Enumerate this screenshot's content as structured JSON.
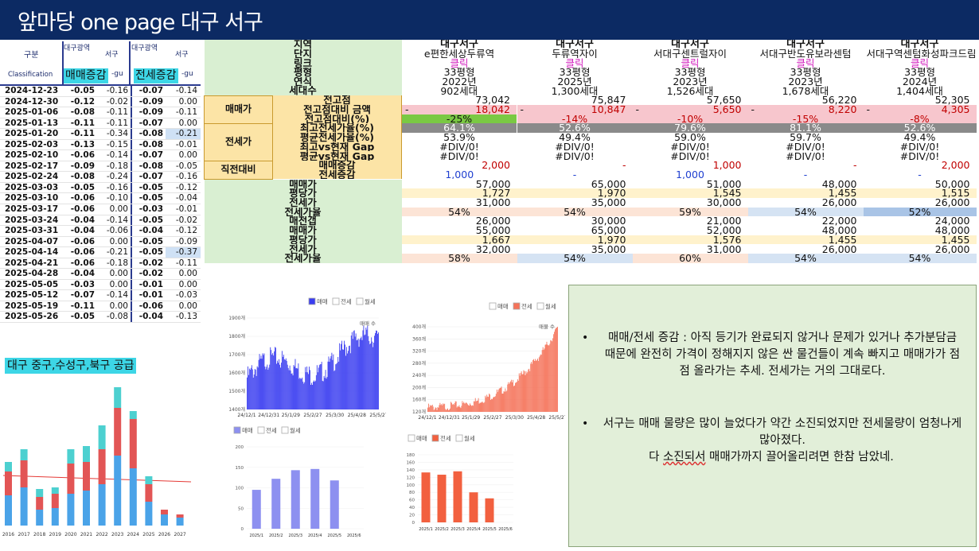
{
  "title": "앞마당 one page 대구 서구",
  "weekly": {
    "header": {
      "col_gubun": "구분",
      "col_classification": "Classification",
      "col_daegu1": "대구광역",
      "col_seogu1": "서구",
      "col_daegu2": "대구광역",
      "col_seogu2": "서구",
      "gu1": "-gu",
      "gu2": "-gu",
      "highlight_sale": "매매증감",
      "highlight_jeonse": "전세증감"
    },
    "rows": [
      {
        "date": "2024-12-23",
        "a": "-0.05",
        "b": "-0.16",
        "c": "-0.07",
        "d": "-0.14"
      },
      {
        "date": "2024-12-30",
        "a": "-0.12",
        "b": "-0.02",
        "c": "-0.09",
        "d": "0.00"
      },
      {
        "date": "2025-01-06",
        "a": "-0.08",
        "b": "-0.11",
        "c": "-0.09",
        "d": "-0.11"
      },
      {
        "date": "2025-01-13",
        "a": "-0.11",
        "b": "-0.11",
        "c": "-0.07",
        "d": "0.00"
      },
      {
        "date": "2025-01-20",
        "a": "-0.11",
        "b": "-0.34",
        "c": "-0.08",
        "d": "-0.21"
      },
      {
        "date": "2025-02-03",
        "a": "-0.13",
        "b": "-0.15",
        "c": "-0.08",
        "d": "-0.01"
      },
      {
        "date": "2025-02-10",
        "a": "-0.06",
        "b": "-0.14",
        "c": "-0.07",
        "d": "0.00"
      },
      {
        "date": "2025-02-17",
        "a": "-0.09",
        "b": "-0.18",
        "c": "-0.08",
        "d": "-0.05"
      },
      {
        "date": "2025-02-24",
        "a": "-0.08",
        "b": "-0.24",
        "c": "-0.07",
        "d": "-0.16"
      },
      {
        "date": "2025-03-03",
        "a": "-0.05",
        "b": "-0.16",
        "c": "-0.05",
        "d": "-0.12"
      },
      {
        "date": "2025-03-10",
        "a": "-0.06",
        "b": "-0.10",
        "c": "-0.05",
        "d": "-0.04"
      },
      {
        "date": "2025-03-17",
        "a": "-0.06",
        "b": "0.00",
        "c": "-0.03",
        "d": "-0.01"
      },
      {
        "date": "2025-03-24",
        "a": "-0.04",
        "b": "-0.14",
        "c": "-0.05",
        "d": "-0.02"
      },
      {
        "date": "2025-03-31",
        "a": "-0.04",
        "b": "-0.06",
        "c": "-0.04",
        "d": "-0.12"
      },
      {
        "date": "2025-04-07",
        "a": "-0.06",
        "b": "0.00",
        "c": "-0.05",
        "d": "-0.09"
      },
      {
        "date": "2025-04-14",
        "a": "-0.06",
        "b": "-0.21",
        "c": "-0.05",
        "d": "-0.37"
      },
      {
        "date": "2025-04-21",
        "a": "-0.06",
        "b": "-0.18",
        "c": "-0.02",
        "d": "-0.11"
      },
      {
        "date": "2025-04-28",
        "a": "-0.04",
        "b": "0.00",
        "c": "-0.02",
        "d": "0.00"
      },
      {
        "date": "2025-05-05",
        "a": "-0.03",
        "b": "0.00",
        "c": "-0.01",
        "d": "0.00"
      },
      {
        "date": "2025-05-12",
        "a": "-0.07",
        "b": "-0.14",
        "c": "-0.01",
        "d": "-0.03"
      },
      {
        "date": "2025-05-19",
        "a": "-0.11",
        "b": "0.00",
        "c": "-0.06",
        "d": "0.00"
      },
      {
        "date": "2025-05-26",
        "a": "-0.05",
        "b": "-0.08",
        "c": "-0.04",
        "d": "-0.13"
      }
    ]
  },
  "supply": {
    "label": "대구 중구,수성구,북구 공급",
    "years": [
      "2016",
      "2017",
      "2018",
      "2019",
      "2020",
      "2021",
      "2022",
      "2023",
      "2024",
      "2025",
      "2026",
      "2027"
    ]
  },
  "table": {
    "labels": {
      "region": "지역",
      "complex": "단지",
      "link": "링크",
      "size": "평형",
      "year": "연식",
      "households": "세대수",
      "sale": "매매가",
      "jeonse": "전세가",
      "recent": "직전대비",
      "peak": "전고점",
      "peak_diff_amt": "전고점대비 금액",
      "peak_diff_pct": "전고점대비(%)",
      "max_jeonse_rate": "최고전세가율(%)",
      "avg_jeonse_rate": "평균전세가율(%)",
      "max_vs_gap": "최고vs현재 Gap",
      "avg_vs_gap": "평균vs현재 Gap",
      "sale_change": "매매증감",
      "jeonse_change": "전세증감",
      "r_sale": "매매가",
      "r_ppy": "평당가",
      "r_jeonse": "전세가",
      "r_rate": "전세가율",
      "r_gap": "매전갭",
      "r_sale2": "매매가",
      "r_ppy2": "평당가",
      "r_jeonse2": "전세가",
      "r_rate2": "전세가율"
    },
    "columns": [
      {
        "region": "대구서구",
        "complex": "e편한세상두류역",
        "link": "클릭",
        "size": "33평형",
        "year": "2022년",
        "households": "902세대",
        "peak": "73,042",
        "diff_sign": "-",
        "diff_amt": "18,042",
        "diff_pct": "-25%",
        "max_rate": "64.1%",
        "avg_rate": "53.9%",
        "max_gap": "#DIV/0!",
        "avg_gap": "#DIV/0!",
        "sale_change": "2,000",
        "jeonse_change": "1,000",
        "sale": "57,000",
        "ppy": "1,727",
        "jeonse": "31,000",
        "rate": "54%",
        "gap": "26,000",
        "sale2": "55,000",
        "ppy2": "1,667",
        "jeonse2": "32,000",
        "rate2": "58%"
      },
      {
        "region": "대구서구",
        "complex": "두류역자이",
        "link": "클릭",
        "size": "33평형",
        "year": "2025년",
        "households": "1,300세대",
        "peak": "75,847",
        "diff_sign": "-",
        "diff_amt": "10,847",
        "diff_pct": "-14%",
        "max_rate": "52.6%",
        "avg_rate": "49.4%",
        "max_gap": "#DIV/0!",
        "avg_gap": "#DIV/0!",
        "sale_change": "-",
        "jeonse_change": "-",
        "sale": "65,000",
        "ppy": "1,970",
        "jeonse": "35,000",
        "rate": "54%",
        "gap": "30,000",
        "sale2": "65,000",
        "ppy2": "1,970",
        "jeonse2": "35,000",
        "rate2": "54%"
      },
      {
        "region": "대구서구",
        "complex": "서대구센트럴자이",
        "link": "클릭",
        "size": "33평형",
        "year": "2023년",
        "households": "1,526세대",
        "peak": "57,650",
        "diff_sign": "-",
        "diff_amt": "5,650",
        "diff_pct": "-10%",
        "max_rate": "79.6%",
        "avg_rate": "59.0%",
        "max_gap": "#DIV/0!",
        "avg_gap": "#DIV/0!",
        "sale_change": "1,000",
        "jeonse_change": "1,000",
        "sale": "51,000",
        "ppy": "1,545",
        "jeonse": "30,000",
        "rate": "59%",
        "gap": "21,000",
        "sale2": "52,000",
        "ppy2": "1,576",
        "jeonse2": "31,000",
        "rate2": "60%"
      },
      {
        "region": "대구서구",
        "complex": "서대구반도유보라센텀",
        "link": "클릭",
        "size": "33평형",
        "year": "2023년",
        "households": "1,678세대",
        "peak": "56,220",
        "diff_sign": "-",
        "diff_amt": "8,220",
        "diff_pct": "-15%",
        "max_rate": "81.1%",
        "avg_rate": "59.7%",
        "max_gap": "#DIV/0!",
        "avg_gap": "#DIV/0!",
        "sale_change": "-",
        "jeonse_change": "-",
        "sale": "48,000",
        "ppy": "1,455",
        "jeonse": "26,000",
        "rate": "54%",
        "gap": "22,000",
        "sale2": "48,000",
        "ppy2": "1,455",
        "jeonse2": "26,000",
        "rate2": "54%"
      },
      {
        "region": "대구서구",
        "complex": "서대구역센텀화성파크드림",
        "link": "클릭",
        "size": "33평형",
        "year": "2024년",
        "households": "1,404세대",
        "peak": "52,305",
        "diff_sign": "-",
        "diff_amt": "4,305",
        "diff_pct": "-8%",
        "max_rate": "52.6%",
        "avg_rate": "49.4%",
        "max_gap": "#DIV/0!",
        "avg_gap": "#DIV/0!",
        "sale_change": "2,000",
        "jeonse_change": "-",
        "sale": "50,000",
        "ppy": "1,515",
        "jeonse": "26,000",
        "rate": "52%",
        "gap": "24,000",
        "sale2": "48,000",
        "ppy2": "1,455",
        "jeonse2": "26,000",
        "rate2": "54%"
      }
    ]
  },
  "charts": {
    "legend_sale": "매매",
    "legend_jeonse": "전세",
    "legend_monthly": "월세",
    "chart1": {
      "type": "bar",
      "y_ticks": [
        "1900개",
        "1800개",
        "1700개",
        "1600개",
        "1500개",
        "1400개"
      ],
      "x_ticks": [
        "24/12/1",
        "24/12/31",
        "25/1/29",
        "25/2/27",
        "25/3/30",
        "25/4/28",
        "25/5/27"
      ],
      "annotation": "매매 수",
      "color": "#3a3df0"
    },
    "chart2": {
      "type": "bar",
      "y_ticks": [
        "400개",
        "360개",
        "320개",
        "280개",
        "240개",
        "200개",
        "160개",
        "120개"
      ],
      "x_ticks": [
        "24/12/1",
        "24/12/31",
        "25/1/29",
        "25/2/27",
        "25/3/30",
        "25/4/28",
        "25/5/27"
      ],
      "annotation": "매물 수",
      "color": "#f5735a"
    },
    "chart3": {
      "type": "bar",
      "y_ticks": [
        "200",
        "150",
        "100",
        "50",
        "0"
      ],
      "categories": [
        "2025/1",
        "2025/2",
        "2025/3",
        "2025/4",
        "2025/5",
        "2025/6"
      ],
      "values": [
        95,
        122,
        143,
        146,
        118,
        0
      ],
      "color": "#8d90f0"
    },
    "chart4": {
      "type": "bar",
      "y_ticks": [
        "180",
        "160",
        "140",
        "120",
        "100",
        "80",
        "60",
        "40",
        "20",
        "0"
      ],
      "categories": [
        "2025/1",
        "2025/2",
        "2025/3",
        "2025/4",
        "2025/5",
        "2025/6"
      ],
      "values": [
        133,
        127,
        136,
        80,
        64,
        0
      ],
      "color": "#f2603f"
    }
  },
  "notes": {
    "bullet1": "매매/전세 증감 : 아직 등기가 완료되지 않거나 문제가 있거나 추가분담금 때문에 완전히 가격이 정해지지 않은 싼 물건들이 계속 빠지고 매매가가 점점 올라가는 추세. 전세가는 거의 그대로다.",
    "bullet2": "서구는 매매 물량은 많이 늘었다가 약간 소진되었지만 전세물량이 엄청나게 많아졌다.",
    "line3_a": "다 ",
    "line3_b": "소진되서",
    "line3_c": " 매매가까지 끌어올리려면 한참 남았네."
  }
}
